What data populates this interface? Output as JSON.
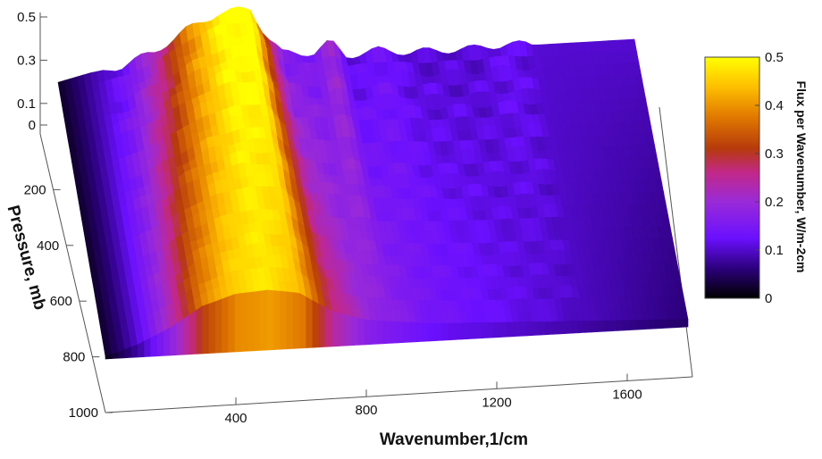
{
  "chart_data": {
    "type": "surface3d",
    "title": "",
    "xlabel": "Wavenumber,1/cm",
    "ylabel": "Pressure, mb",
    "zlabel": "",
    "xlim": [
      0,
      1800
    ],
    "ylim": [
      0,
      1000
    ],
    "zlim": [
      0,
      0.55
    ],
    "x_ticks": [
      400,
      800,
      1200,
      1600
    ],
    "y_ticks": [
      200,
      400,
      600,
      800,
      1000
    ],
    "z_ticks": [
      0,
      0.1,
      0.3,
      0.5
    ],
    "z_tick_labels": [
      "0",
      "0.1",
      "0.3",
      "0.5"
    ],
    "grid": false,
    "colorbar": {
      "label": "Flux per Wavenumber,  W/m-2cm",
      "range": [
        0,
        0.5
      ],
      "ticks": [
        0,
        0.1,
        0.2,
        0.3,
        0.4,
        0.5
      ],
      "colors": [
        "#000000",
        "#3b00a8",
        "#7a18ff",
        "#a630e0",
        "#c22a90",
        "#b83a10",
        "#e08a00",
        "#ffc800",
        "#ffff00"
      ]
    },
    "pressure_levels": [
      0,
      100,
      200,
      300,
      400,
      500,
      600,
      700,
      800,
      850
    ],
    "wavenumber_samples": [
      0,
      100,
      200,
      300,
      400,
      500,
      600,
      650,
      700,
      800,
      850,
      900,
      1000,
      1100,
      1200,
      1300,
      1400,
      1500,
      1600,
      1700,
      1800
    ],
    "flux_surface_bottom": [
      0.02,
      0.1,
      0.22,
      0.38,
      0.46,
      0.48,
      0.44,
      0.36,
      0.28,
      0.2,
      0.18,
      0.17,
      0.14,
      0.13,
      0.12,
      0.11,
      0.1,
      0.09,
      0.08,
      0.07,
      0.06
    ],
    "flux_surface_top": [
      0.02,
      0.08,
      0.12,
      0.22,
      0.38,
      0.5,
      0.52,
      0.3,
      0.15,
      0.14,
      0.22,
      0.1,
      0.13,
      0.1,
      0.1,
      0.1,
      0.12,
      0.1,
      0.1,
      0.1,
      0.1
    ]
  }
}
